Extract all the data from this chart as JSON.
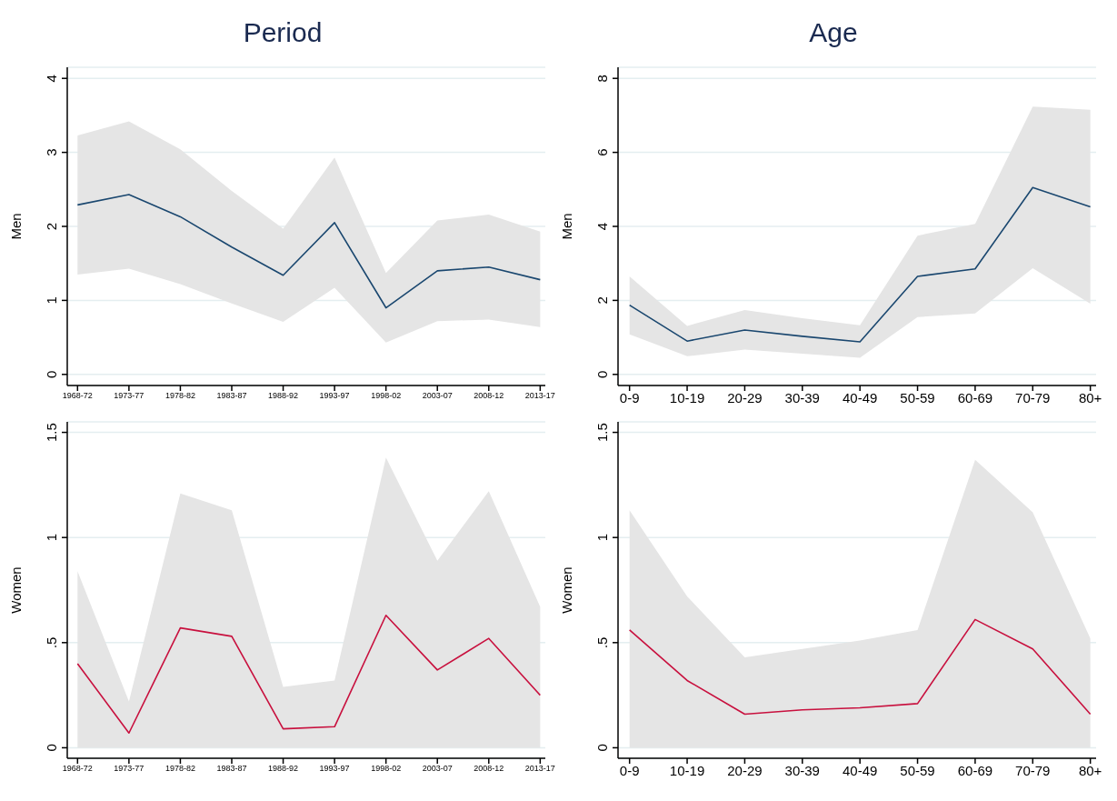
{
  "chart_data": [
    {
      "type": "line",
      "title": "Period",
      "ylabel": "Men",
      "categories": [
        "1968-72",
        "1973-77",
        "1978-82",
        "1983-87",
        "1988-92",
        "1993-97",
        "1998-02",
        "2003-07",
        "2008-12",
        "2013-17"
      ],
      "series": [
        {
          "color": "#1a476f",
          "values": [
            2.29,
            2.43,
            2.13,
            1.72,
            1.34,
            2.05,
            0.9,
            1.4,
            1.45,
            1.28
          ],
          "lower": [
            1.35,
            1.43,
            1.22,
            0.96,
            0.71,
            1.17,
            0.43,
            0.72,
            0.74,
            0.64
          ],
          "upper": [
            3.23,
            3.42,
            3.04,
            2.48,
            1.97,
            2.93,
            1.37,
            2.08,
            2.16,
            1.93
          ]
        }
      ],
      "ylim": [
        -0.15,
        4.15
      ],
      "yticks": [
        0,
        1,
        2,
        3,
        4
      ],
      "grid": "y",
      "legend": false
    },
    {
      "type": "line",
      "title": "Age",
      "ylabel": "Men",
      "categories": [
        "0-9",
        "10-19",
        "20-29",
        "30-39",
        "40-49",
        "50-59",
        "60-69",
        "70-79",
        "80+"
      ],
      "series": [
        {
          "color": "#1a476f",
          "values": [
            1.87,
            0.9,
            1.2,
            1.03,
            0.88,
            2.65,
            2.85,
            5.05,
            4.53
          ],
          "lower": [
            1.08,
            0.49,
            0.67,
            0.56,
            0.45,
            1.55,
            1.65,
            2.87,
            1.91
          ],
          "upper": [
            2.65,
            1.31,
            1.74,
            1.52,
            1.33,
            3.75,
            4.07,
            7.24,
            7.15
          ]
        }
      ],
      "ylim": [
        -0.3,
        8.3
      ],
      "yticks": [
        0,
        2,
        4,
        6,
        8
      ],
      "grid": "y",
      "legend": false
    },
    {
      "type": "line",
      "ylabel": "Women",
      "categories": [
        "1968-72",
        "1973-77",
        "1978-82",
        "1983-87",
        "1988-92",
        "1993-97",
        "1998-02",
        "2003-07",
        "2008-12",
        "2013-17"
      ],
      "series": [
        {
          "color": "#c8103e",
          "values": [
            0.4,
            0.07,
            0.57,
            0.53,
            0.09,
            0.1,
            0.63,
            0.37,
            0.52,
            0.25
          ],
          "lower": [
            0,
            0,
            0,
            0,
            0,
            0,
            0,
            0,
            0,
            0
          ],
          "upper": [
            0.84,
            0.22,
            1.21,
            1.13,
            0.29,
            0.32,
            1.38,
            0.89,
            1.22,
            0.67
          ]
        }
      ],
      "ylim": [
        -0.05,
        1.55
      ],
      "yticks": [
        0,
        {
          "value": 0.5,
          "label": ".5"
        },
        1,
        1.5
      ],
      "grid": "y",
      "legend": false
    },
    {
      "type": "line",
      "ylabel": "Women",
      "categories": [
        "0-9",
        "10-19",
        "20-29",
        "30-39",
        "40-49",
        "50-59",
        "60-69",
        "70-79",
        "80+"
      ],
      "series": [
        {
          "color": "#c8103e",
          "values": [
            0.56,
            0.32,
            0.16,
            0.18,
            0.19,
            0.21,
            0.61,
            0.47,
            0.16
          ],
          "lower": [
            0,
            0,
            0,
            0,
            0,
            0,
            0,
            0,
            0
          ],
          "upper": [
            1.13,
            0.72,
            0.43,
            0.47,
            0.51,
            0.56,
            1.37,
            1.12,
            0.52
          ]
        }
      ],
      "ylim": [
        -0.05,
        1.55
      ],
      "yticks": [
        0,
        {
          "value": 0.5,
          "label": ".5"
        },
        1,
        1.5
      ],
      "grid": "y",
      "legend": false
    }
  ]
}
